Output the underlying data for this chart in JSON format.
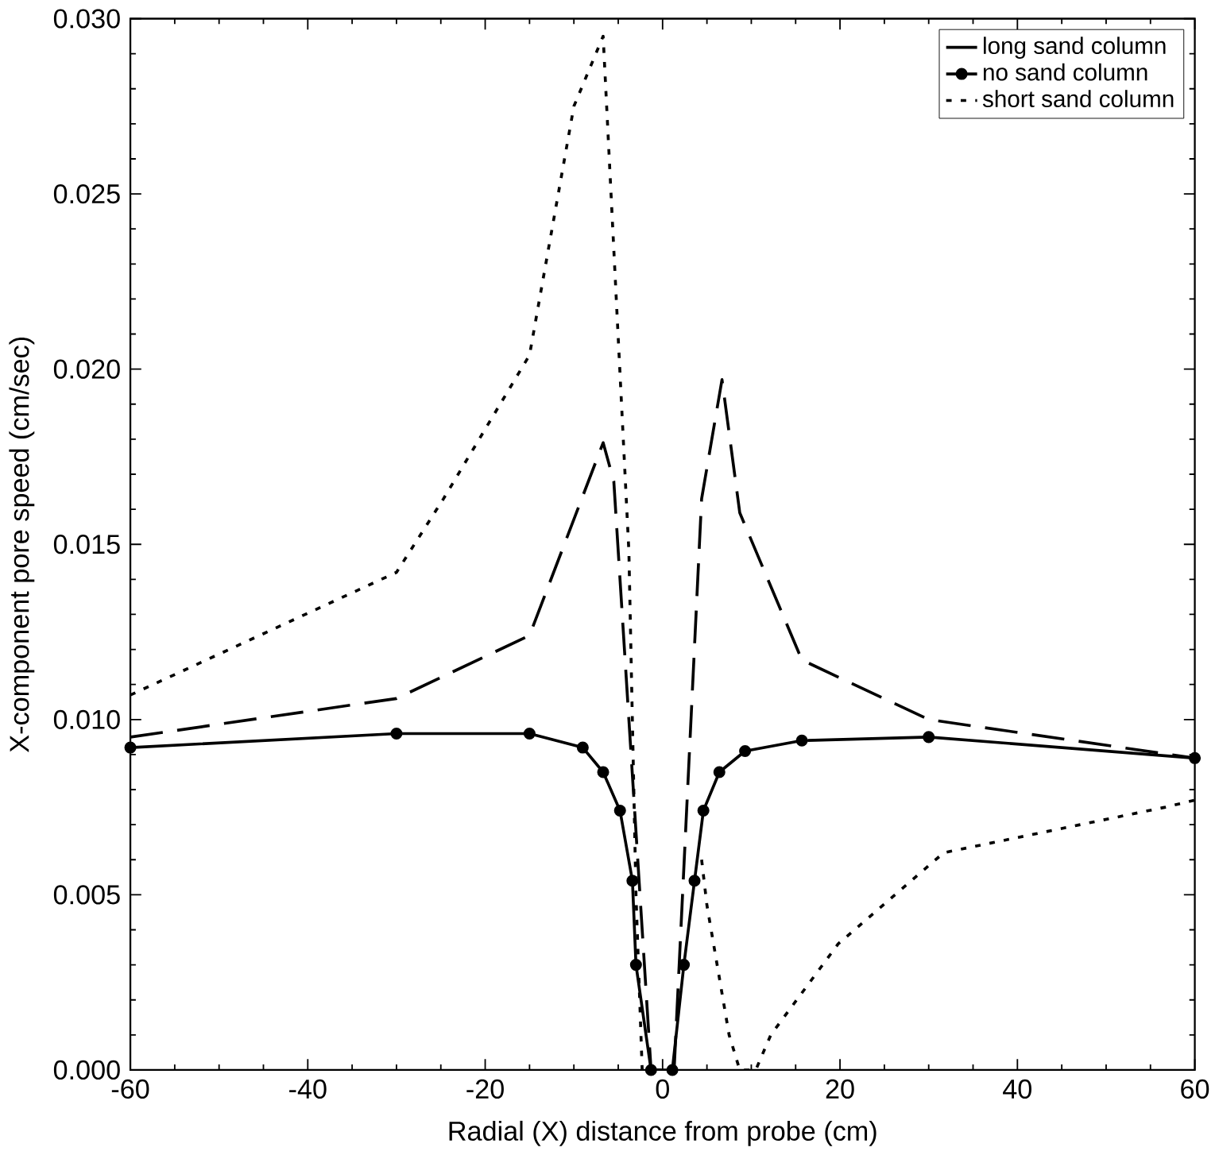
{
  "chart_data": {
    "type": "line",
    "xlabel": "Radial (X) distance from probe (cm)",
    "ylabel": "X-component pore speed (cm/sec)",
    "xlim": [
      -60,
      60
    ],
    "xticks": [
      -60,
      -40,
      -20,
      0,
      20,
      40,
      60
    ],
    "ylim": [
      0,
      0.03
    ],
    "yticks": [
      {
        "value": 0,
        "label": "0.000"
      },
      {
        "value": 0.005,
        "label": "0.005"
      },
      {
        "value": 0.01,
        "label": "0.010"
      },
      {
        "value": 0.015,
        "label": "0.015"
      },
      {
        "value": 0.02,
        "label": "0.020"
      },
      {
        "value": 0.025,
        "label": "0.025"
      },
      {
        "value": 0.03,
        "label": "0.030"
      }
    ],
    "grid": false,
    "legend": "top right",
    "series": [
      {
        "name": "long sand column",
        "color": "#000000",
        "line_style": "dashed",
        "marker": "none",
        "x": [
          -60,
          -30,
          -15,
          -6.7,
          -5.5,
          -1.3,
          1.3,
          4.4,
          6.7,
          8.7,
          15.7,
          30,
          60
        ],
        "values": [
          0.0095,
          0.0106,
          0.0124,
          0.0179,
          0.0168,
          0,
          0,
          0.0163,
          0.0197,
          0.0159,
          0.0117,
          0.01,
          0.0089
        ]
      },
      {
        "name": "no sand column",
        "color": "#000000",
        "line_style": "solid",
        "marker": "circle",
        "x": [
          -60,
          -30,
          -15,
          -9,
          -6.7,
          -4.8,
          -3.4,
          -3,
          -1.3,
          1.1,
          2.4,
          3.6,
          4.6,
          6.4,
          9.3,
          15.7,
          30,
          60
        ],
        "values": [
          0.0092,
          0.0096,
          0.0096,
          0.0092,
          0.0085,
          0.0074,
          0.0054,
          0.003,
          0,
          0,
          0.003,
          0.0054,
          0.0074,
          0.0085,
          0.0091,
          0.0094,
          0.0095,
          0.0089
        ]
      },
      {
        "name": "short sand column",
        "color": "#000000",
        "line_style": "dotted",
        "marker": "none",
        "x": [
          -60,
          -30,
          -24.7,
          -15,
          -10,
          -6.7,
          -3.8,
          -3,
          -2.3,
          1,
          4.4,
          5,
          7.5,
          8.7,
          10.5,
          12.2,
          19.8,
          31.7,
          56.7,
          60
        ],
        "values": [
          0.0107,
          0.0142,
          0.0163,
          0.0204,
          0.0275,
          0.0295,
          0.0148,
          0.005,
          0,
          null,
          0.006,
          0.0047,
          0.001,
          0,
          0,
          0.001,
          0.0036,
          0.0062,
          0.0075,
          0.0077
        ]
      }
    ]
  }
}
